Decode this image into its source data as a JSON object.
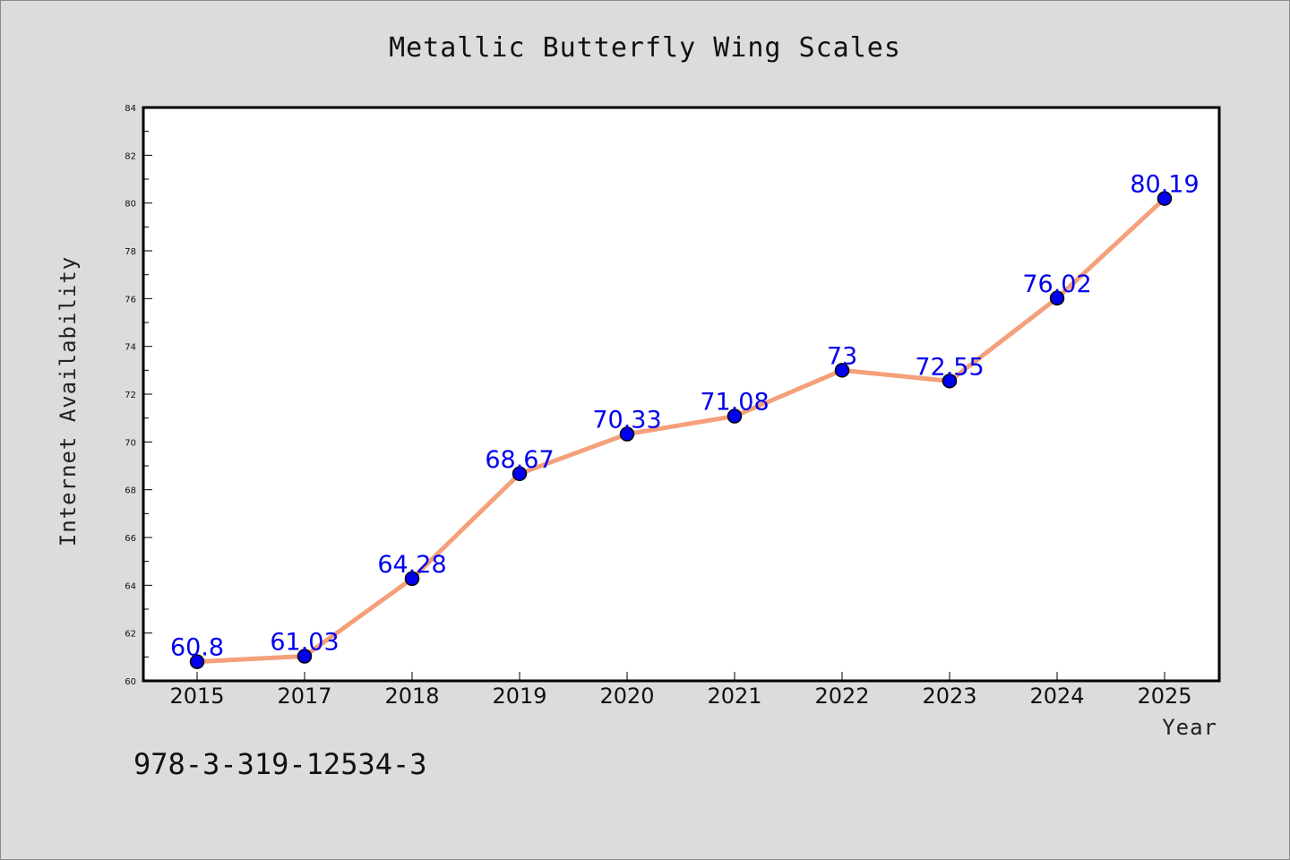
{
  "chart_data": {
    "type": "line",
    "title": "Metallic Butterfly Wing Scales",
    "xlabel": "Year",
    "ylabel": "Internet Availability",
    "categories": [
      "2015",
      "2017",
      "2018",
      "2019",
      "2020",
      "2021",
      "2022",
      "2023",
      "2024",
      "2025"
    ],
    "series": [
      {
        "values": [
          60.8,
          61.03,
          64.28,
          68.67,
          70.33,
          71.08,
          73,
          72.55,
          76.02,
          80.19
        ],
        "line_color": "#f4a07a",
        "marker_color": "#0000ee"
      }
    ],
    "data_labels": [
      "60.8",
      "61.03",
      "64.28",
      "68.67",
      "70.33",
      "71.08",
      "73",
      "72.55",
      "76.02",
      "80.19"
    ],
    "ylim": [
      60,
      84
    ],
    "yticks": [
      "60",
      "62",
      "64",
      "66",
      "68",
      "70",
      "72",
      "74",
      "76",
      "78",
      "80",
      "82",
      "84"
    ],
    "grid": false,
    "legend": "none"
  },
  "footnote": "978-3-319-12534-3"
}
